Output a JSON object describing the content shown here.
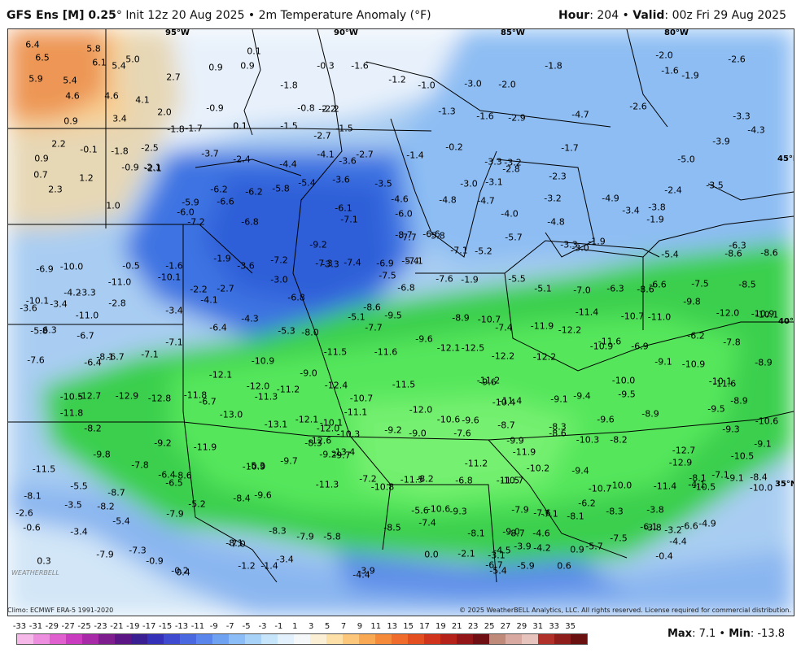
{
  "header": {
    "model": "GFS Ens [M] 0.25",
    "deg": "°",
    "init": " Init 12z 20 Aug 2025 • 2m Temperature Anomaly (°F)",
    "hour_label": "Hour",
    "hour_value": ": 204 • ",
    "valid_label": "Valid",
    "valid_value": ": 00z Fri 29 Aug 2025"
  },
  "footer": {
    "climo": "Climo: ECMWF ERA-5 1991-2020",
    "copyright": "© 2025 WeatherBELL Analytics, LLC. All rights reserved. License required for commercial distribution.",
    "max_label": "Max",
    "max_value": ": 7.1 • ",
    "min_label": "Min",
    "min_value": ": -13.8",
    "logo": "WEATHERBELL"
  },
  "colorbar": {
    "ticks": [
      "-33",
      "-31",
      "-29",
      "-27",
      "-25",
      "-23",
      "-21",
      "-19",
      "-17",
      "-15",
      "-13",
      "-11",
      "-9",
      "-7",
      "-5",
      "-3",
      "-1",
      "1",
      "3",
      "5",
      "7",
      "9",
      "11",
      "13",
      "15",
      "17",
      "19",
      "21",
      "23",
      "25",
      "27",
      "29",
      "31",
      "33",
      "35"
    ],
    "colors": [
      "#f5b8e8",
      "#ee8ede",
      "#e060d0",
      "#c93cc0",
      "#a82aa8",
      "#7d1d8e",
      "#5b1585",
      "#3a1f93",
      "#3430b8",
      "#3e4bd0",
      "#4a68e0",
      "#5a86ec",
      "#6fa3f2",
      "#8cbdf6",
      "#a9d2f8",
      "#c6e4fa",
      "#e2f1fb",
      "#f4f8f8",
      "#fbf0d6",
      "#fde0a8",
      "#fcc77a",
      "#f9a853",
      "#f58a3a",
      "#ef6c2c",
      "#e44f22",
      "#d0341d",
      "#b4221a",
      "#921618",
      "#6f0f14",
      "#c08a7a",
      "#d7a9a0",
      "#e6c3bd",
      "#b0302a",
      "#8e1e1c",
      "#6a1010"
    ]
  },
  "map": {
    "latlon": [
      {
        "t": "95°W"
      },
      {
        "t": "90°W"
      },
      {
        "t": "85°W"
      },
      {
        "t": "80°W"
      },
      {
        "t": "45°N"
      },
      {
        "t": "40°N"
      },
      {
        "t": "35°N"
      }
    ],
    "values": [
      "6.4",
      "5.8",
      "6.5",
      "6.1",
      "5.4",
      "5.0",
      "5.9",
      "5.4",
      "4.6",
      "4.6",
      "4.1",
      "0.9",
      "3.4",
      "2.0",
      "2.7",
      "0.9",
      "0.9",
      "0.1",
      "-0.9",
      "0.1",
      "-1.8",
      "-1.7",
      "0.1",
      "-0.3",
      "-1.6",
      "-1.8",
      "-2.2",
      "-1.0",
      "-1.2",
      "-3.0",
      "-2.0",
      "-1.8",
      "-2.0",
      "-2.6",
      "-1.6",
      "-1.9",
      "-2.6",
      "-3.3",
      "-1.5",
      "-1.5",
      "-2.7",
      "-0.8",
      "-2.2",
      "-1.3",
      "-1.6",
      "-2.9",
      "-4.7",
      "-4.3",
      "-3.9",
      "-5.0",
      "2.2",
      "-0.1",
      "-1.8",
      "-2.5",
      "-3.7",
      "-2.4",
      "-4.4",
      "-4.1",
      "-3.6",
      "-2.7",
      "-1.4",
      "-0.2",
      "-3.3",
      "-3.2",
      "-2.8",
      "-2.3",
      "-1.7",
      "-2.1",
      "0.9",
      "0.7",
      "1.2",
      "-0.9",
      "-2.1",
      "2.3",
      "1.0",
      "-6.2",
      "-6.2",
      "-5.8",
      "-5.4",
      "-3.6",
      "-3.5",
      "-3.0",
      "-3.1",
      "-3.2",
      "-4.9",
      "-1.9",
      "-2.4",
      "-3.5",
      "-3.4",
      "-3.8",
      "-5.9",
      "-6.6",
      "-6.1",
      "-4.6",
      "-4.8",
      "-4.7",
      "-4.0",
      "-4.8",
      "-6.0",
      "-7.2",
      "-6.8",
      "-7.1",
      "-6.0",
      "-5.8",
      "-5.2",
      "-5.7",
      "-3.3",
      "-1.9",
      "-3.0",
      "-5.4",
      "-6.3",
      "-8.6",
      "-8.6",
      "-9.2",
      "-8.7",
      "-7.7",
      "-6.6",
      "-7.1",
      "-3.3",
      "-5.4",
      "-6.9",
      "-10.0",
      "-0.5",
      "-1.6",
      "-1.9",
      "-3.6",
      "-7.2",
      "-7.3",
      "-7.4",
      "-6.9",
      "-7.5",
      "-7.1",
      "-7.6",
      "-1.9",
      "-5.5",
      "-5.1",
      "-6.3",
      "-6.6",
      "-7.5",
      "-8.5",
      "-11.0",
      "-10.1",
      "-2.2",
      "-2.7",
      "-3.0",
      "-6.8",
      "-6.8",
      "-7.0",
      "-8.6",
      "-9.8",
      "-12.0",
      "-10.9",
      "-10.1",
      "-3.4",
      "-4.2",
      "-3.3",
      "-3.6",
      "-4.1",
      "-2.8",
      "-3.4",
      "-4.3",
      "-5.1",
      "-8.6",
      "-9.5",
      "-8.9",
      "-7.4",
      "-11.4",
      "-10.7",
      "-11.0",
      "-10.1",
      "-11.0",
      "-5.8",
      "-6.3",
      "-6.7",
      "-6.4",
      "-5.3",
      "-8.0",
      "-7.7",
      "-9.6",
      "-10.7",
      "-11.9",
      "-12.2",
      "-11.6",
      "-6.2",
      "-7.1",
      "-7.1",
      "-6.7",
      "-8.1",
      "-7.6",
      "-6.4",
      "-10.9",
      "-11.5",
      "-11.6",
      "-12.1",
      "-12.5",
      "-12.2",
      "-12.2",
      "-10.9",
      "-6.9",
      "-9.1",
      "-7.8",
      "-9.0",
      "-12.1",
      "-12.0",
      "-11.2",
      "-9.6",
      "-10.0",
      "-10.9",
      "-11.6",
      "-12.4",
      "-11.5",
      "-11.2",
      "-11.4",
      "-10.4",
      "-9.1",
      "-9.4",
      "-9.5",
      "-10.1",
      "-8.9",
      "-8.9",
      "-6.7",
      "-10.5",
      "-12.7",
      "-12.9",
      "-12.8",
      "-11.8",
      "-11.3",
      "-10.7",
      "-12.0",
      "-10.6",
      "-9.6",
      "-8.7",
      "-8.3",
      "-9.6",
      "-8.9",
      "-9.5",
      "-9.3",
      "-10.6",
      "-11.8",
      "-13.0",
      "-13.1",
      "-12.1",
      "-12.0",
      "-11.1",
      "-9.2",
      "-9.0",
      "-7.6",
      "-9.9",
      "-8.6",
      "-10.3",
      "-8.2",
      "-9.1",
      "-10.3",
      "-10.1",
      "-8.2",
      "-9.2",
      "-11.9",
      "-12.6",
      "-10.9",
      "-8.3",
      "-13.4",
      "-12.7",
      "-9.8",
      "-7.8",
      "-5.3",
      "-9.7",
      "-9.2",
      "-9.7",
      "-11.2",
      "-11.9",
      "-12.9",
      "-10.5",
      "-11.5",
      "-6.4",
      "-8.6",
      "-6.5",
      "-7.2",
      "-8.2",
      "-6.8",
      "-11.5",
      "-11.5",
      "-10.2",
      "-9.4",
      "-8.1",
      "-9.1",
      "-8.4",
      "-7.1",
      "-4.1",
      "-5.5",
      "-8.7",
      "-9.6",
      "-11.3",
      "-10.8",
      "-10.7",
      "-10.0",
      "-10.7",
      "-11.4",
      "-10.5",
      "-10.0",
      "-8.1",
      "-3.5",
      "-5.2",
      "-8.4",
      "-5.6",
      "-10.6",
      "-9.3",
      "-7.9",
      "-7.1",
      "-8.1",
      "-6.2",
      "-3.8",
      "-2.6",
      "-8.2",
      "-7.9",
      "-5.4",
      "-7.4",
      "-8.1",
      "-8.7",
      "-7.6",
      "-8.3",
      "-6.6",
      "-0.6",
      "-3.4",
      "-7.0",
      "-8.3",
      "-7.9",
      "-5.8",
      "-8.5",
      "-9.0",
      "-4.6",
      "-3.2",
      "-4.9",
      "-3.8",
      "-4.4",
      "-5.7",
      "-7.5",
      "-6.1",
      "-7.9",
      "-7.3",
      "-8.1",
      "0.0",
      "-2.1",
      "-3.1",
      "-4.5",
      "-3.9",
      "-4.2",
      "0.9",
      "-0.4",
      "-0.9",
      "-1.2",
      "-1.4",
      "-3.4",
      "-4.4",
      "-3.9",
      "-6.7",
      "-5.4",
      "-5.9",
      "0.6",
      "0.3",
      "0.4",
      "-0.2"
    ]
  }
}
